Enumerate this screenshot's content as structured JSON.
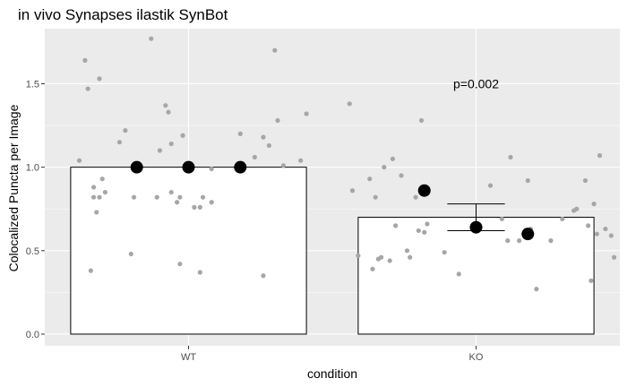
{
  "chart_data": {
    "type": "bar",
    "title": "in vivo Synapses ilastik SynBot",
    "xlabel": "condition",
    "ylabel": "Colocalized Puncta per Image",
    "categories": [
      "WT",
      "KO"
    ],
    "values": [
      1.0,
      0.7
    ],
    "error_bars": [
      null,
      {
        "low": 0.62,
        "high": 0.78
      }
    ],
    "ylim": [
      -0.07,
      1.83
    ],
    "yticks": [
      0.0,
      0.5,
      1.0,
      1.5
    ],
    "ytick_labels": [
      "0.0",
      "0.5",
      "1.0",
      "1.5"
    ],
    "grid": true,
    "background": "#ebebeb",
    "grid_color": "#ffffff",
    "bar_fill": "#ffffff",
    "bar_outline": "#000000",
    "point_color": "#a6a6a6",
    "mean_point_color": "#000000",
    "annotation": {
      "text": "p=0.002",
      "category": "KO",
      "y": 1.5
    },
    "mean_points": [
      {
        "category": "WT",
        "offset": -0.18,
        "y": 1.0
      },
      {
        "category": "WT",
        "offset": 0.0,
        "y": 1.0
      },
      {
        "category": "WT",
        "offset": 0.18,
        "y": 1.0
      },
      {
        "category": "KO",
        "offset": -0.18,
        "y": 0.86
      },
      {
        "category": "KO",
        "offset": 0.0,
        "y": 0.64
      },
      {
        "category": "KO",
        "offset": 0.18,
        "y": 0.6
      }
    ],
    "points": [
      {
        "category": "WT",
        "offset": -0.38,
        "y": 1.04
      },
      {
        "category": "WT",
        "offset": -0.36,
        "y": 1.64
      },
      {
        "category": "WT",
        "offset": -0.35,
        "y": 1.47
      },
      {
        "category": "WT",
        "offset": -0.34,
        "y": 0.38
      },
      {
        "category": "WT",
        "offset": -0.33,
        "y": 0.88
      },
      {
        "category": "WT",
        "offset": -0.33,
        "y": 0.82
      },
      {
        "category": "WT",
        "offset": -0.32,
        "y": 0.73
      },
      {
        "category": "WT",
        "offset": -0.31,
        "y": 0.82
      },
      {
        "category": "WT",
        "offset": -0.31,
        "y": 1.53
      },
      {
        "category": "WT",
        "offset": -0.3,
        "y": 0.93
      },
      {
        "category": "WT",
        "offset": -0.29,
        "y": 0.85
      },
      {
        "category": "WT",
        "offset": -0.24,
        "y": 1.15
      },
      {
        "category": "WT",
        "offset": -0.22,
        "y": 1.22
      },
      {
        "category": "WT",
        "offset": -0.2,
        "y": 0.48
      },
      {
        "category": "WT",
        "offset": -0.19,
        "y": 0.82
      },
      {
        "category": "WT",
        "offset": -0.13,
        "y": 1.77
      },
      {
        "category": "WT",
        "offset": -0.11,
        "y": 0.82
      },
      {
        "category": "WT",
        "offset": -0.1,
        "y": 1.1
      },
      {
        "category": "WT",
        "offset": -0.08,
        "y": 1.37
      },
      {
        "category": "WT",
        "offset": -0.07,
        "y": 1.33
      },
      {
        "category": "WT",
        "offset": -0.06,
        "y": 0.85
      },
      {
        "category": "WT",
        "offset": -0.06,
        "y": 1.14
      },
      {
        "category": "WT",
        "offset": -0.04,
        "y": 0.79
      },
      {
        "category": "WT",
        "offset": -0.03,
        "y": 0.42
      },
      {
        "category": "WT",
        "offset": -0.03,
        "y": 0.82
      },
      {
        "category": "WT",
        "offset": -0.02,
        "y": 1.19
      },
      {
        "category": "WT",
        "offset": 0.02,
        "y": 0.76
      },
      {
        "category": "WT",
        "offset": 0.04,
        "y": 0.37
      },
      {
        "category": "WT",
        "offset": 0.04,
        "y": 0.76
      },
      {
        "category": "WT",
        "offset": 0.05,
        "y": 0.82
      },
      {
        "category": "WT",
        "offset": 0.08,
        "y": 0.79
      },
      {
        "category": "WT",
        "offset": 0.08,
        "y": 0.99
      },
      {
        "category": "WT",
        "offset": 0.18,
        "y": 1.2
      },
      {
        "category": "WT",
        "offset": 0.23,
        "y": 1.06
      },
      {
        "category": "WT",
        "offset": 0.26,
        "y": 0.35
      },
      {
        "category": "WT",
        "offset": 0.26,
        "y": 1.18
      },
      {
        "category": "WT",
        "offset": 0.28,
        "y": 1.13
      },
      {
        "category": "WT",
        "offset": 0.3,
        "y": 1.7
      },
      {
        "category": "WT",
        "offset": 0.31,
        "y": 1.28
      },
      {
        "category": "WT",
        "offset": 0.33,
        "y": 1.01
      },
      {
        "category": "WT",
        "offset": 0.39,
        "y": 1.04
      },
      {
        "category": "WT",
        "offset": 0.41,
        "y": 1.32
      },
      {
        "category": "KO",
        "offset": -0.44,
        "y": 1.38
      },
      {
        "category": "KO",
        "offset": -0.43,
        "y": 0.86
      },
      {
        "category": "KO",
        "offset": -0.41,
        "y": 0.47
      },
      {
        "category": "KO",
        "offset": -0.37,
        "y": 0.93
      },
      {
        "category": "KO",
        "offset": -0.36,
        "y": 0.39
      },
      {
        "category": "KO",
        "offset": -0.35,
        "y": 0.82
      },
      {
        "category": "KO",
        "offset": -0.34,
        "y": 0.45
      },
      {
        "category": "KO",
        "offset": -0.33,
        "y": 0.46
      },
      {
        "category": "KO",
        "offset": -0.32,
        "y": 1.0
      },
      {
        "category": "KO",
        "offset": -0.3,
        "y": 0.44
      },
      {
        "category": "KO",
        "offset": -0.29,
        "y": 1.05
      },
      {
        "category": "KO",
        "offset": -0.28,
        "y": 0.65
      },
      {
        "category": "KO",
        "offset": -0.26,
        "y": 0.95
      },
      {
        "category": "KO",
        "offset": -0.24,
        "y": 0.5
      },
      {
        "category": "KO",
        "offset": -0.23,
        "y": 0.46
      },
      {
        "category": "KO",
        "offset": -0.21,
        "y": 0.82
      },
      {
        "category": "KO",
        "offset": -0.2,
        "y": 0.62
      },
      {
        "category": "KO",
        "offset": -0.19,
        "y": 1.28
      },
      {
        "category": "KO",
        "offset": -0.18,
        "y": 0.61
      },
      {
        "category": "KO",
        "offset": -0.17,
        "y": 0.66
      },
      {
        "category": "KO",
        "offset": -0.11,
        "y": 0.49
      },
      {
        "category": "KO",
        "offset": -0.06,
        "y": 0.36
      },
      {
        "category": "KO",
        "offset": 0.05,
        "y": 0.89
      },
      {
        "category": "KO",
        "offset": 0.09,
        "y": 0.69
      },
      {
        "category": "KO",
        "offset": 0.11,
        "y": 0.56
      },
      {
        "category": "KO",
        "offset": 0.12,
        "y": 1.06
      },
      {
        "category": "KO",
        "offset": 0.15,
        "y": 0.56
      },
      {
        "category": "KO",
        "offset": 0.18,
        "y": 0.92
      },
      {
        "category": "KO",
        "offset": 0.19,
        "y": 0.63
      },
      {
        "category": "KO",
        "offset": 0.21,
        "y": 0.27
      },
      {
        "category": "KO",
        "offset": 0.26,
        "y": 0.56
      },
      {
        "category": "KO",
        "offset": 0.3,
        "y": 0.69
      },
      {
        "category": "KO",
        "offset": 0.34,
        "y": 0.74
      },
      {
        "category": "KO",
        "offset": 0.35,
        "y": 0.75
      },
      {
        "category": "KO",
        "offset": 0.38,
        "y": 0.92
      },
      {
        "category": "KO",
        "offset": 0.39,
        "y": 0.65
      },
      {
        "category": "KO",
        "offset": 0.4,
        "y": 0.32
      },
      {
        "category": "KO",
        "offset": 0.41,
        "y": 0.78
      },
      {
        "category": "KO",
        "offset": 0.42,
        "y": 0.6
      },
      {
        "category": "KO",
        "offset": 0.43,
        "y": 1.07
      },
      {
        "category": "KO",
        "offset": 0.45,
        "y": 0.63
      },
      {
        "category": "KO",
        "offset": 0.47,
        "y": 0.59
      },
      {
        "category": "KO",
        "offset": 0.48,
        "y": 0.46
      }
    ]
  }
}
